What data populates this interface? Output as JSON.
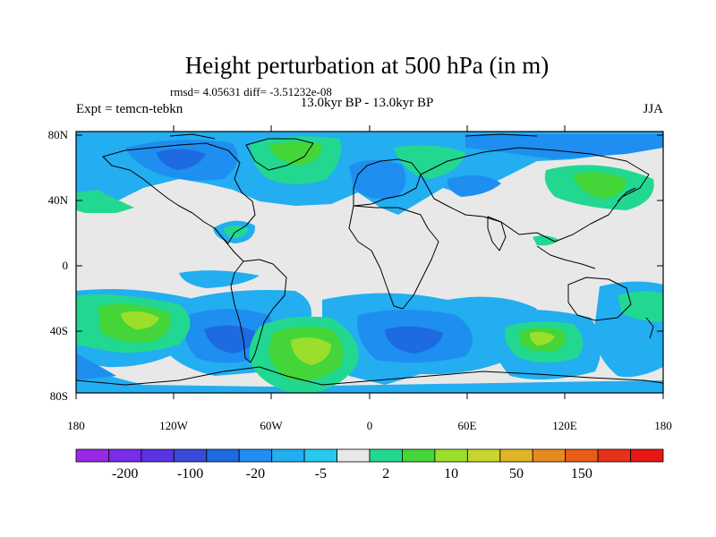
{
  "title": "Height perturbation at 500 hPa (in m)",
  "stats": "rmsd= 4.05631 diff= -3.51232e-08",
  "subtitle": "13.0kyr BP - 13.0kyr BP",
  "experiment": "Expt = temcn-tebkn",
  "season": "JJA",
  "lat_labels": [
    "80N",
    "40N",
    "0",
    "40S",
    "80S"
  ],
  "lon_labels": [
    "180",
    "120W",
    "60W",
    "0",
    "60E",
    "120E",
    "180"
  ],
  "colorbar": {
    "colors": [
      "#9a28e6",
      "#7a2ce8",
      "#5a32e0",
      "#3a4ad8",
      "#1e6ae0",
      "#1e8ef0",
      "#22aef0",
      "#28c8f0",
      "#e8e8e8",
      "#22d890",
      "#44d638",
      "#9cde2c",
      "#c8d430",
      "#e0b428",
      "#e68a20",
      "#e85c1a",
      "#e63218",
      "#e61814"
    ],
    "labels": [
      "-200",
      "-100",
      "-20",
      "-5",
      "2",
      "10",
      "50",
      "150"
    ]
  },
  "palette": {
    "ocean_background": "#e8e8e8",
    "light_blue": "#22aef0",
    "mid_blue": "#1e8ef0",
    "dark_blue": "#1e6ae0",
    "teal": "#22d890",
    "green": "#44d638",
    "yellow_green": "#9cde2c"
  }
}
